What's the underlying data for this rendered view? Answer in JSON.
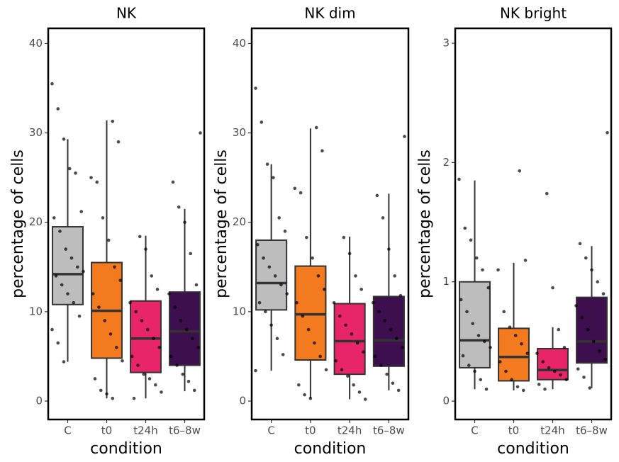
{
  "chart_data": [
    {
      "type": "box",
      "title": "NK",
      "x_label": "condition",
      "y_label": "percentage of cells",
      "categories": [
        "C",
        "t0",
        "t24h",
        "t6–8w"
      ],
      "colors": [
        "#bdbdbd",
        "#f47a20",
        "#e8256a",
        "#3d0f4f"
      ],
      "ylim": [
        -2.06,
        41.7
      ],
      "yticks": [
        0,
        10,
        20,
        30,
        40
      ],
      "boxes": [
        {
          "whisker_low": 4.4,
          "q1": 10.8,
          "median": 14.2,
          "q3": 19.5,
          "whisker_high": 29.3,
          "points": [
            35.5,
            32.7,
            29.3,
            26,
            25.5,
            21.2,
            20.5,
            19,
            17,
            16,
            15,
            14.5,
            14,
            13,
            12,
            11,
            9.5,
            8,
            6.5,
            4.4
          ]
        },
        {
          "whisker_low": 0.3,
          "q1": 4.8,
          "median": 10.1,
          "q3": 15.5,
          "whisker_high": 31.4,
          "points": [
            31.3,
            29,
            25,
            24.5,
            20.5,
            18,
            15,
            13.5,
            12,
            10.5,
            9,
            7.5,
            6,
            4.5,
            2.5,
            1.2,
            0.8,
            0.3
          ]
        },
        {
          "whisker_low": 0.3,
          "q1": 3.2,
          "median": 7.0,
          "q3": 11.2,
          "whisker_high": 18.5,
          "points": [
            18.4,
            17,
            14,
            12.5,
            11,
            10,
            9,
            8,
            7,
            6,
            5,
            4,
            3,
            2.5,
            1.8,
            1,
            0.3
          ]
        },
        {
          "whisker_low": 1.1,
          "q1": 4.0,
          "median": 7.8,
          "q3": 12.2,
          "whisker_high": 21.5,
          "points": [
            30,
            24.5,
            21.7,
            20,
            16.5,
            13,
            12,
            10.5,
            9,
            8,
            7,
            6,
            5,
            4,
            3,
            2.2,
            1.2
          ]
        }
      ]
    },
    {
      "type": "box",
      "title": "NK dim",
      "x_label": "condition",
      "y_label": "percentage of cells",
      "categories": [
        "C",
        "t0",
        "t24h",
        "t6–8w"
      ],
      "colors": [
        "#bdbdbd",
        "#f47a20",
        "#e8256a",
        "#3d0f4f"
      ],
      "ylim": [
        -2.06,
        41.7
      ],
      "yticks": [
        0,
        10,
        20,
        30,
        40
      ],
      "boxes": [
        {
          "whisker_low": 3.4,
          "q1": 10.2,
          "median": 13.2,
          "q3": 18.0,
          "whisker_high": 26.5,
          "points": [
            35,
            31.2,
            26.5,
            25,
            20.5,
            19,
            17.5,
            16,
            15,
            14,
            13,
            12,
            11,
            10,
            8.5,
            7,
            5.2,
            3.4
          ]
        },
        {
          "whisker_low": 0.3,
          "q1": 4.6,
          "median": 9.7,
          "q3": 15.1,
          "whisker_high": 30.5,
          "points": [
            30.6,
            28,
            23.8,
            23.3,
            18.3,
            16,
            14,
            12.5,
            11,
            9.5,
            8,
            6.5,
            5,
            3.5,
            1.8,
            0.7,
            0.3
          ]
        },
        {
          "whisker_low": 0.2,
          "q1": 3.0,
          "median": 6.7,
          "q3": 10.9,
          "whisker_high": 18.4,
          "points": [
            18.3,
            16.5,
            14,
            12.5,
            11,
            9.5,
            8.5,
            7.5,
            6.5,
            5.5,
            4.5,
            3.5,
            2.8,
            1.8,
            1,
            0.2
          ]
        },
        {
          "whisker_low": 1.2,
          "q1": 3.9,
          "median": 6.8,
          "q3": 11.7,
          "whisker_high": 23.2,
          "points": [
            29.6,
            23,
            20.5,
            17,
            14,
            11.8,
            11,
            10,
            9,
            8,
            7,
            6,
            5,
            4,
            3,
            2,
            1.2
          ]
        }
      ]
    },
    {
      "type": "box",
      "title": "NK bright",
      "x_label": "condition",
      "y_label": "percentage of cells",
      "categories": [
        "C",
        "t0",
        "t24h",
        "t6–8w"
      ],
      "colors": [
        "#bdbdbd",
        "#f47a20",
        "#e8256a",
        "#3d0f4f"
      ],
      "ylim": [
        -0.154,
        3.125
      ],
      "yticks": [
        0,
        1,
        2,
        3
      ],
      "boxes": [
        {
          "whisker_low": 0.1,
          "q1": 0.28,
          "median": 0.51,
          "q3": 1.0,
          "whisker_high": 1.85,
          "points": [
            1.86,
            1.45,
            1.35,
            1.2,
            1.1,
            0.95,
            0.85,
            0.75,
            0.65,
            0.55,
            0.5,
            0.45,
            0.38,
            0.3,
            0.25,
            0.18,
            0.1
          ]
        },
        {
          "whisker_low": 0.09,
          "q1": 0.17,
          "median": 0.37,
          "q3": 0.61,
          "whisker_high": 1.16,
          "points": [
            1.93,
            1.18,
            1.1,
            0.75,
            0.62,
            0.55,
            0.48,
            0.4,
            0.33,
            0.25,
            0.18,
            0.12,
            0.09
          ]
        },
        {
          "whisker_low": 0.1,
          "q1": 0.18,
          "median": 0.26,
          "q3": 0.44,
          "whisker_high": 0.62,
          "points": [
            1.74,
            0.95,
            0.6,
            0.45,
            0.4,
            0.33,
            0.28,
            0.25,
            0.22,
            0.18,
            0.14,
            0.1
          ]
        },
        {
          "whisker_low": 0.11,
          "q1": 0.32,
          "median": 0.5,
          "q3": 0.87,
          "whisker_high": 1.3,
          "points": [
            2.25,
            1.32,
            1.2,
            1.1,
            1.0,
            0.9,
            0.8,
            0.7,
            0.6,
            0.5,
            0.42,
            0.35,
            0.27,
            0.2,
            0.11
          ]
        }
      ]
    }
  ]
}
